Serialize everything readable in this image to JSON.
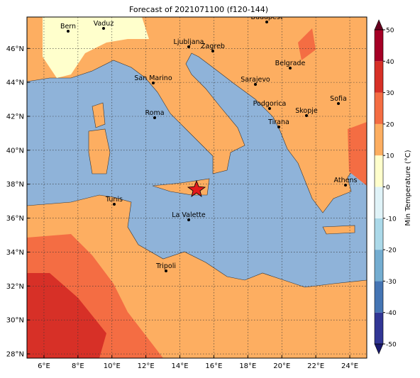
{
  "title": "Forecast of 2021071100 (f120-144)",
  "map": {
    "xlim": [
      5,
      25
    ],
    "ylim": [
      27.75,
      47.85
    ],
    "xticks": [
      {
        "value": 6,
        "label": "6°E"
      },
      {
        "value": 8,
        "label": "8°E"
      },
      {
        "value": 10,
        "label": "10°E"
      },
      {
        "value": 12,
        "label": "12°E"
      },
      {
        "value": 14,
        "label": "14°E"
      },
      {
        "value": 16,
        "label": "16°E"
      },
      {
        "value": 18,
        "label": "18°E"
      },
      {
        "value": 20,
        "label": "20°E"
      },
      {
        "value": 22,
        "label": "22°E"
      },
      {
        "value": 24,
        "label": "24°E"
      }
    ],
    "yticks": [
      {
        "value": 28,
        "label": "28°N"
      },
      {
        "value": 30,
        "label": "30°N"
      },
      {
        "value": 32,
        "label": "32°N"
      },
      {
        "value": 34,
        "label": "34°N"
      },
      {
        "value": 36,
        "label": "36°N"
      },
      {
        "value": 38,
        "label": "38°N"
      },
      {
        "value": 40,
        "label": "40°N"
      },
      {
        "value": 42,
        "label": "42°N"
      },
      {
        "value": 44,
        "label": "44°N"
      },
      {
        "value": 46,
        "label": "46°N"
      }
    ],
    "grid": true,
    "cities": [
      "Bern",
      "Vaduz",
      "Budapest",
      "Ljubljana",
      "Zagreb",
      "Belgrade",
      "San Marino",
      "Sarajevo",
      "Sofia",
      "Podgorica",
      "Skopje",
      "Roma",
      "Tirana",
      "Athens",
      "Tunis",
      "La Valette",
      "Tripoli"
    ]
  },
  "colorbar": {
    "label": "Min Temperature (°C)",
    "lim": [
      -50,
      50
    ],
    "ticks": [
      -50,
      -40,
      -30,
      -20,
      -10,
      0,
      10,
      20,
      30,
      40,
      50
    ],
    "colors": [
      "#313695",
      "#4575b4",
      "#74add1",
      "#abd9e9",
      "#e0f3f8",
      "#ffffcc",
      "#fdae61",
      "#f46d43",
      "#d73027",
      "#a50026"
    ],
    "under_color": "#1a1a6e",
    "over_color": "#67001f"
  }
}
